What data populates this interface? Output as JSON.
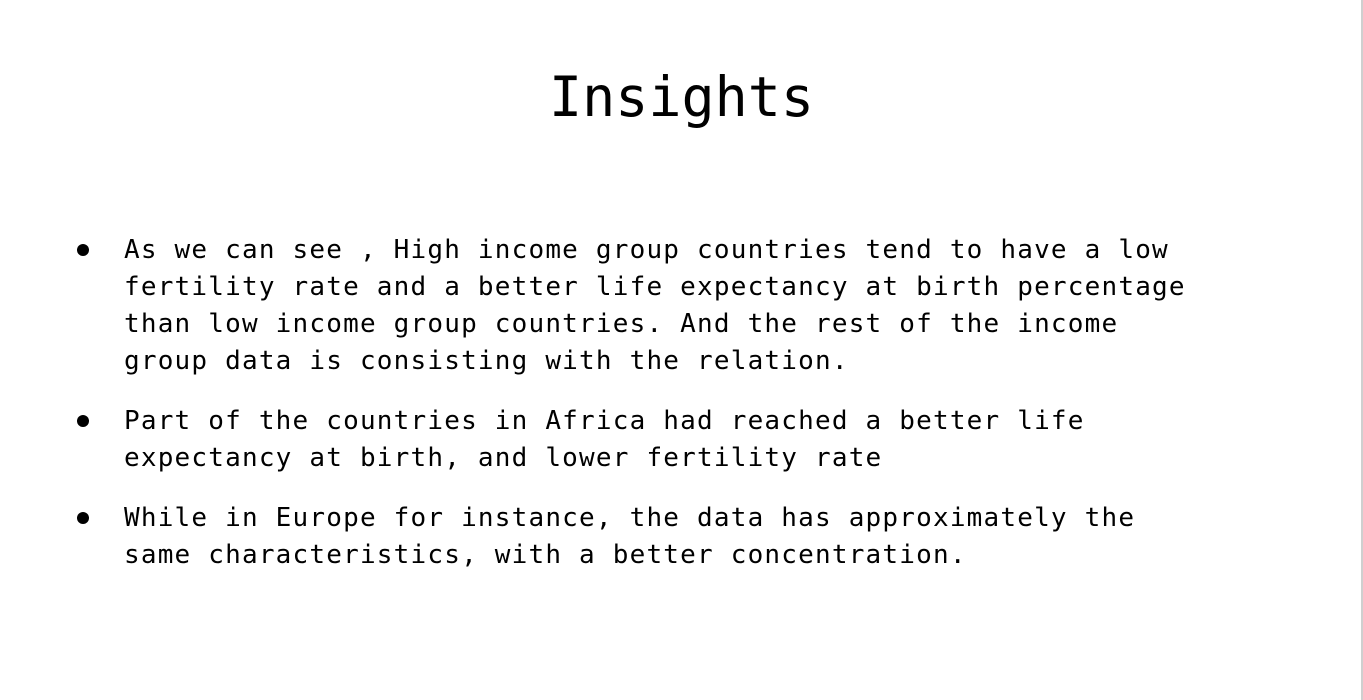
{
  "slide": {
    "title": "Insights",
    "bullets": [
      {
        "text": "As we can see , High income group countries tend to have a low\nfertility rate and a better life expectancy at birth percentage\nthan low income group countries. And the rest of the income\ngroup data is consisting with the relation."
      },
      {
        "text": "Part of the countries in Africa had reached a better life\nexpectancy at birth, and lower fertility rate"
      },
      {
        "text": "While in Europe for instance, the data has approximately the\nsame characteristics, with a better concentration."
      }
    ]
  }
}
